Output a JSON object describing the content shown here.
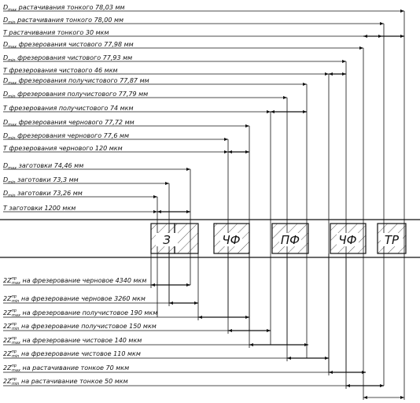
{
  "top_labels": [
    {
      "sym": "D",
      "sub": "max",
      "text": "растачивания тонкого 78,03 мм"
    },
    {
      "sym": "D",
      "sub": "min",
      "text": "растачивания тонкого 78,00 мм"
    },
    {
      "sym": "",
      "sub": "",
      "text": "T растачивания тонкого 30 мкм"
    },
    {
      "sym": "D",
      "sub": "max",
      "text": "фрезерования чистового 77,98 мм"
    },
    {
      "sym": "D",
      "sub": "min",
      "text": "фрезерования чистового 77,93 мм"
    },
    {
      "sym": "",
      "sub": "",
      "text": "T фрезерования чистового 46 мкм"
    },
    {
      "sym": "D",
      "sub": "max",
      "text": "фрезерования получистового 77,87 мм"
    },
    {
      "sym": "D",
      "sub": "min",
      "text": "фрезерования получистового 77,79 мм"
    },
    {
      "sym": "",
      "sub": "",
      "text": "T фрезерования получистового 74 мкм"
    },
    {
      "sym": "D",
      "sub": "max",
      "text": "фрезерования чернового 77,72 мм"
    },
    {
      "sym": "D",
      "sub": "min",
      "text": "фрезерования чернового 77,6 мм"
    },
    {
      "sym": "",
      "sub": "",
      "text": "T фрезерования чернового 120 мкм"
    },
    {
      "sym": "D",
      "sub": "max",
      "text": "заготовки 74,46 мм"
    },
    {
      "sym": "D",
      "sub": "min",
      "text": "заготовки 73,3 мм"
    },
    {
      "sym": "D",
      "sub": "min",
      "text": "заготовки 73,26 мм"
    },
    {
      "sym": "",
      "sub": "",
      "text": "T заготовки 1200 мкм"
    }
  ],
  "zones": [
    "З",
    "ЧФ",
    "ПФ",
    "ЧФ",
    "ТР"
  ],
  "bottom_labels": [
    {
      "sym": "2Z",
      "sup": "пр",
      "sub": "max",
      "text": "на фрезерование  черновое 4340 мкм"
    },
    {
      "sym": "2Z",
      "sup": "пр",
      "sub": "min",
      "text": "на фрезерование  черновое 3260 мкм"
    },
    {
      "sym": "2Z",
      "sup": "пр",
      "sub": "max",
      "text": "на  фрезерование получистовое 190 мкм"
    },
    {
      "sym": "2Z",
      "sup": "пр",
      "sub": "min",
      "text": "на фрезерование  получистовое 150 мкм"
    },
    {
      "sym": "2Z",
      "sup": "пр",
      "sub": "max",
      "text": "на фрезерование  чистовое 140 мкм"
    },
    {
      "sym": "2Z",
      "sup": "пр",
      "sub": "min",
      "text": "на фрезерование  чистовое 110 мкм"
    },
    {
      "sym": "2Z",
      "sup": "пр",
      "sub": "max",
      "text": "на растачивание тонкое 70 мкм"
    },
    {
      "sym": "2Z",
      "sup": "пр",
      "sub": "min",
      "text": "на растачивание тонкое 50 мкм"
    }
  ]
}
